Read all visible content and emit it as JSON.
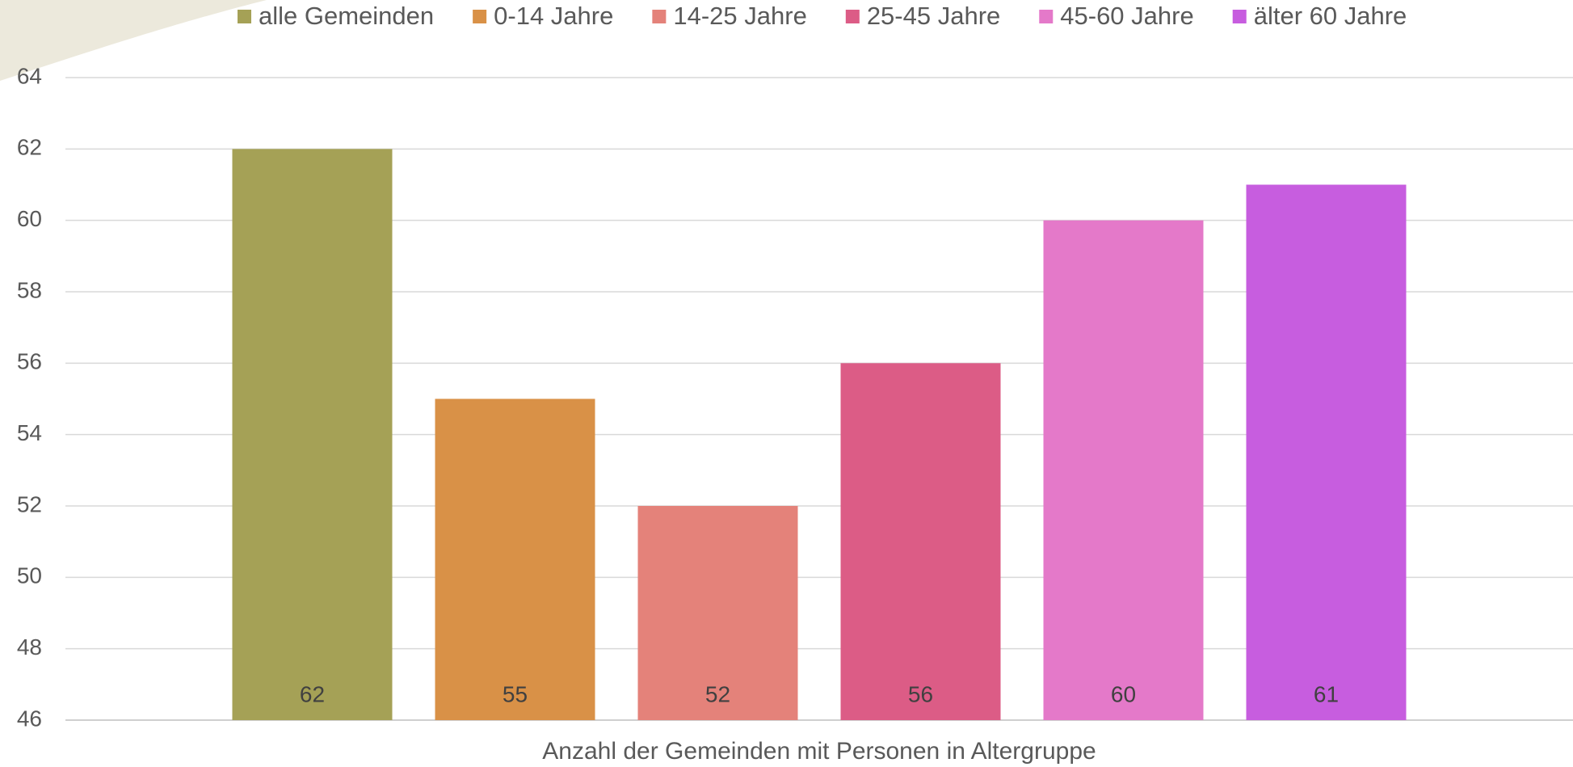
{
  "chart_data": {
    "type": "bar",
    "categories": [
      "Anzahl der Gemeinden mit Personen in Altergruppe"
    ],
    "series": [
      {
        "name": "alle Gemeinden",
        "color": "#a5a156",
        "values": [
          62
        ]
      },
      {
        "name": "0-14 Jahre",
        "color": "#d99147",
        "values": [
          55
        ]
      },
      {
        "name": "14-25 Jahre",
        "color": "#e4827a",
        "values": [
          52
        ]
      },
      {
        "name": "25-45 Jahre",
        "color": "#dc5c86",
        "values": [
          56
        ]
      },
      {
        "name": "45-60 Jahre",
        "color": "#e479c9",
        "values": [
          60
        ]
      },
      {
        "name": "älter 60 Jahre",
        "color": "#c75ddf",
        "values": [
          61
        ]
      }
    ],
    "ylim": [
      46,
      64
    ],
    "yticks": [
      46,
      48,
      50,
      52,
      54,
      56,
      58,
      60,
      62,
      64
    ],
    "grid": true,
    "legend": "top",
    "data_labels": true
  }
}
